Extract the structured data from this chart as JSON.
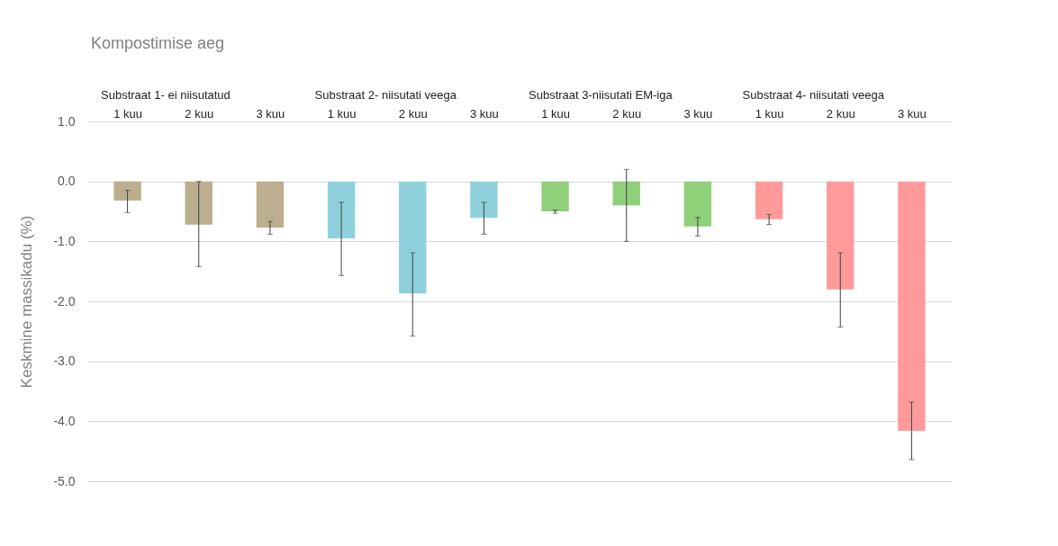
{
  "chart_data": {
    "type": "bar",
    "title": "Kompostimise aeg",
    "ylabel": "Keskmine massikadu (%)",
    "categories": [
      "1 kuu",
      "2 kuu",
      "3 kuu",
      "1 kuu",
      "2 kuu",
      "3 kuu",
      "1 kuu",
      "2 kuu",
      "3 kuu",
      "1 kuu",
      "2 kuu",
      "3 kuu"
    ],
    "values": [
      -0.32,
      -0.72,
      -0.77,
      -0.95,
      -1.87,
      -0.61,
      -0.5,
      -0.4,
      -0.75,
      -0.63,
      -1.8,
      -4.16
    ],
    "errors": [
      [
        -0.52,
        -0.15
      ],
      [
        -1.42,
        0.0
      ],
      [
        -0.88,
        -0.67
      ],
      [
        -1.57,
        -0.35
      ],
      [
        -2.58,
        -1.19
      ],
      [
        -0.88,
        -0.35
      ],
      [
        -0.53,
        -0.48
      ],
      [
        -1.0,
        0.2
      ],
      [
        -0.91,
        -0.6
      ],
      [
        -0.72,
        -0.55
      ],
      [
        -2.43,
        -1.19
      ],
      [
        -4.64,
        -3.68
      ]
    ],
    "colors": [
      "#bcae8e",
      "#bcae8e",
      "#bcae8e",
      "#8ed1dc",
      "#8ed1dc",
      "#8ed1dc",
      "#8fd07a",
      "#8fd07a",
      "#8fd07a",
      "#ff9a9a",
      "#ff9a9a",
      "#ff9a9a"
    ],
    "annotations": [
      "Substraat 1- ei niisutatud",
      "Substraat 2- niisutati veega",
      "Substraat 3-niisutati EM-iga",
      "Substraat 4- niisutati veega"
    ],
    "ylim": [
      -5.0,
      1.0
    ],
    "yticks": [
      {
        "value": 1.0,
        "label": "1.0"
      },
      {
        "value": 0.0,
        "label": "0.0"
      },
      {
        "value": -1.0,
        "label": "-1.0"
      },
      {
        "value": -2.0,
        "label": "-2.0"
      },
      {
        "value": -3.0,
        "label": "-3.0"
      },
      {
        "value": -4.0,
        "label": "-4.0"
      },
      {
        "value": -5.0,
        "label": "-5.0"
      }
    ],
    "grid": "y"
  }
}
